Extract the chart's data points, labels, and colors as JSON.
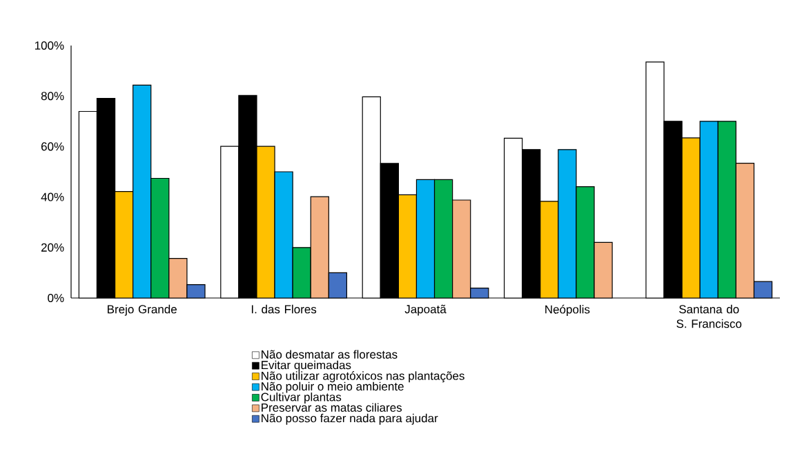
{
  "chart_data": {
    "type": "bar",
    "categories": [
      "Brejo Grande",
      "I. das Flores",
      "Japoatã",
      "Neópolis",
      "Santana do S. Francisco"
    ],
    "series": [
      {
        "name": "Não desmatar as florestas",
        "color": "#ffffff",
        "values": [
          73.9,
          60.1,
          79.7,
          63.3,
          93.5
        ]
      },
      {
        "name": "Evitar queimadas",
        "color": "#000000",
        "values": [
          79.1,
          80.2,
          53.3,
          58.8,
          70.0
        ]
      },
      {
        "name": "Não utilizar agrotóxicos nas plantações",
        "color": "#ffc000",
        "values": [
          42.2,
          60.1,
          40.9,
          38.3,
          63.4
        ]
      },
      {
        "name": "Não poluir o meio ambiente",
        "color": "#00b0f0",
        "values": [
          84.3,
          50.0,
          46.9,
          58.8,
          70.0
        ]
      },
      {
        "name": "Cultivar plantas",
        "color": "#00b050",
        "values": [
          47.4,
          20.0,
          46.9,
          44.1,
          70.0
        ]
      },
      {
        "name": "Preservar as matas ciliares",
        "color": "#f4b183",
        "values": [
          15.7,
          40.1,
          38.8,
          22.0,
          53.4
        ]
      },
      {
        "name": "Não posso fazer nada para ajudar",
        "color": "#4472c4",
        "values": [
          5.3,
          10.0,
          3.9,
          null,
          6.5
        ]
      }
    ],
    "ylim": [
      0,
      100
    ],
    "yticks": [
      {
        "value": 0,
        "label": "0%"
      },
      {
        "value": 20,
        "label": "20%"
      },
      {
        "value": 40,
        "label": "40%"
      },
      {
        "value": 60,
        "label": "60%"
      },
      {
        "value": 80,
        "label": "80%"
      },
      {
        "value": 100,
        "label": "100%"
      }
    ],
    "legend": "bottom"
  }
}
